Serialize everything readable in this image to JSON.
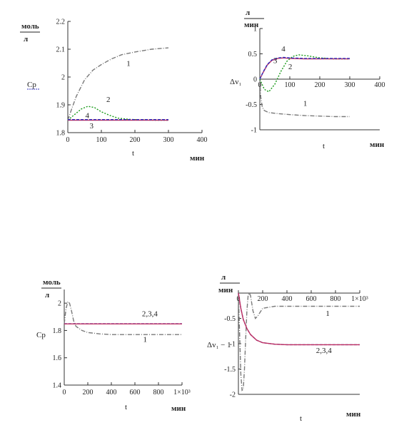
{
  "chart_data": [
    {
      "type": "line",
      "ylabel_unit_top": "моль",
      "ylabel_unit_bottom": "л",
      "ylabel": "Cp",
      "xlabel": "t",
      "xunit": "мин",
      "xlim": [
        0,
        400
      ],
      "ylim": [
        1.8,
        2.2
      ],
      "xticks": [
        0,
        100,
        200,
        300,
        400
      ],
      "xtick_labels": [
        "0",
        "100",
        "200",
        "300",
        "400"
      ],
      "yticks": [
        1.8,
        1.9,
        2.0,
        2.1,
        2.2
      ],
      "ytick_labels": [
        "1.8",
        "1.9",
        "2",
        "2.1",
        "2.2"
      ],
      "series": [
        {
          "name": "1",
          "color": "#7a7a7a",
          "dash": "6 2 1 2",
          "x": [
            0,
            10,
            25,
            50,
            75,
            100,
            130,
            160,
            200,
            250,
            300
          ],
          "y": [
            1.845,
            1.88,
            1.93,
            1.99,
            2.025,
            2.045,
            2.065,
            2.08,
            2.09,
            2.1,
            2.105
          ]
        },
        {
          "name": "2",
          "color": "#1a9a1a",
          "dash": "2 2",
          "x": [
            0,
            20,
            40,
            60,
            80,
            100,
            125,
            150,
            180,
            220,
            260,
            300
          ],
          "y": [
            1.845,
            1.865,
            1.885,
            1.895,
            1.89,
            1.875,
            1.862,
            1.852,
            1.848,
            1.846,
            1.845,
            1.845
          ]
        },
        {
          "name": "3",
          "color": "#c03060",
          "dash": "",
          "x": [
            0,
            50,
            100,
            150,
            200,
            250,
            300
          ],
          "y": [
            1.845,
            1.845,
            1.845,
            1.845,
            1.845,
            1.845,
            1.845
          ]
        },
        {
          "name": "4",
          "color": "#3030c0",
          "dash": "4 2",
          "x": [
            0,
            50,
            100,
            150,
            200,
            250,
            300
          ],
          "y": [
            1.847,
            1.847,
            1.847,
            1.847,
            1.847,
            1.847,
            1.847
          ]
        }
      ],
      "annotations": [
        {
          "text": "1",
          "x": 175,
          "y": 2.04
        },
        {
          "text": "2",
          "x": 115,
          "y": 1.91
        },
        {
          "text": "4",
          "x": 52,
          "y": 1.853
        },
        {
          "text": "3",
          "x": 65,
          "y": 1.815
        }
      ]
    },
    {
      "type": "line",
      "ylabel_unit_top": "л",
      "ylabel_unit_bottom": "мин",
      "ylabel": "Δv₁",
      "xlabel": "t",
      "xunit": "мин",
      "xlim": [
        0,
        400
      ],
      "ylim": [
        -1,
        1
      ],
      "xticks": [
        0,
        100,
        200,
        300,
        400
      ],
      "xtick_labels": [
        "0",
        "100",
        "200",
        "300",
        "400"
      ],
      "yticks": [
        -1,
        -0.5,
        0,
        0.5,
        1
      ],
      "ytick_labels": [
        "-1",
        "-0.5",
        "0",
        "0.5",
        "1"
      ],
      "series": [
        {
          "name": "1",
          "color": "#7a7a7a",
          "dash": "6 2 1 2",
          "x": [
            0,
            3,
            8,
            15,
            30,
            60,
            100,
            150,
            200,
            250,
            300
          ],
          "y": [
            0,
            -0.35,
            -0.55,
            -0.62,
            -0.66,
            -0.68,
            -0.7,
            -0.72,
            -0.73,
            -0.74,
            -0.74
          ]
        },
        {
          "name": "2",
          "color": "#1a9a1a",
          "dash": "2 2",
          "x": [
            0,
            15,
            30,
            50,
            70,
            90,
            110,
            130,
            160,
            200,
            250,
            300
          ],
          "y": [
            0,
            -0.2,
            -0.25,
            -0.1,
            0.15,
            0.35,
            0.45,
            0.48,
            0.46,
            0.42,
            0.4,
            0.4
          ]
        },
        {
          "name": "3",
          "color": "#c03060",
          "dash": "",
          "x": [
            0,
            10,
            25,
            40,
            60,
            80,
            100,
            150,
            200,
            250,
            300
          ],
          "y": [
            0,
            0.12,
            0.28,
            0.37,
            0.41,
            0.42,
            0.41,
            0.4,
            0.4,
            0.4,
            0.4
          ]
        },
        {
          "name": "4",
          "color": "#3030c0",
          "dash": "4 2",
          "x": [
            0,
            10,
            25,
            40,
            60,
            80,
            100,
            150,
            200,
            250,
            300
          ],
          "y": [
            0,
            0.13,
            0.29,
            0.38,
            0.42,
            0.43,
            0.42,
            0.41,
            0.41,
            0.41,
            0.41
          ]
        }
      ],
      "annotations": [
        {
          "text": "4",
          "x": 72,
          "y": 0.55
        },
        {
          "text": "3",
          "x": 45,
          "y": 0.32
        },
        {
          "text": "2",
          "x": 95,
          "y": 0.2
        },
        {
          "text": "1",
          "x": 145,
          "y": -0.53
        }
      ]
    },
    {
      "type": "line",
      "ylabel_unit_top": "моль",
      "ylabel_unit_bottom": "л",
      "ylabel": "Cp",
      "xlabel": "t",
      "xunit": "мин",
      "xlim": [
        0,
        1000
      ],
      "ylim": [
        1.4,
        2.1
      ],
      "xticks": [
        0,
        200,
        400,
        600,
        800,
        1000
      ],
      "xtick_labels": [
        "0",
        "200",
        "400",
        "600",
        "800",
        "1×10³"
      ],
      "yticks": [
        1.4,
        1.6,
        1.8,
        2.0
      ],
      "ytick_labels": [
        "1.4",
        "1.6",
        "1.8",
        "2"
      ],
      "series": [
        {
          "name": "1",
          "color": "#7a7a7a",
          "dash": "6 2 1 2",
          "x": [
            0,
            15,
            30,
            45,
            60,
            80,
            100,
            150,
            200,
            300,
            400,
            600,
            800,
            1000
          ],
          "y": [
            1.85,
            1.96,
            2.01,
            2.0,
            1.95,
            1.87,
            1.83,
            1.8,
            1.785,
            1.775,
            1.77,
            1.77,
            1.77,
            1.77
          ]
        },
        {
          "name": "2,3,4",
          "color": "#3030c0",
          "dash": "4 2",
          "x": [
            0,
            200,
            400,
            600,
            800,
            1000
          ],
          "y": [
            1.85,
            1.85,
            1.85,
            1.85,
            1.85,
            1.85
          ]
        },
        {
          "name": "2,3,4 (solid)",
          "color": "#c03060",
          "dash": "",
          "x": [
            0,
            200,
            400,
            600,
            800,
            1000
          ],
          "y": [
            1.848,
            1.848,
            1.848,
            1.848,
            1.848,
            1.848
          ]
        }
      ],
      "annotations": [
        {
          "text": "2,3,4",
          "x": 660,
          "y": 1.905
        },
        {
          "text": "1",
          "x": 670,
          "y": 1.715
        }
      ]
    },
    {
      "type": "line",
      "ylabel_unit_top": "л",
      "ylabel_unit_bottom": "мин",
      "ylabel": "Δv₁ − 1",
      "xlabel": "t",
      "xunit": "мин",
      "xlim": [
        0,
        1000
      ],
      "ylim": [
        -2,
        0
      ],
      "xticks": [
        0,
        200,
        400,
        600,
        800,
        1000
      ],
      "xtick_labels": [
        "0",
        "200",
        "400",
        "600",
        "800",
        "1×10³"
      ],
      "yticks": [
        -2,
        -1.5,
        -1,
        -0.5
      ],
      "ytick_labels": [
        "-2",
        "-1.5",
        "-1",
        "-0.5"
      ],
      "series": [
        {
          "name": "1",
          "color": "#7a7a7a",
          "dash": "6 2 1 2",
          "x": [
            0,
            10,
            20,
            30,
            40,
            50,
            60,
            70,
            80,
            90,
            100,
            120,
            140,
            160,
            200,
            300,
            500,
            700,
            1000
          ],
          "y": [
            0,
            -0.8,
            -1.6,
            -1.92,
            -1.9,
            -1.5,
            -0.9,
            -0.35,
            -0.05,
            0,
            -0.05,
            -0.35,
            -0.5,
            -0.45,
            -0.3,
            -0.26,
            -0.26,
            -0.26,
            -0.26
          ]
        },
        {
          "name": "2,3,4",
          "color": "#3030c0",
          "dash": "4 2",
          "x": [
            0,
            20,
            40,
            70,
            100,
            150,
            200,
            300,
            400,
            600,
            800,
            1000
          ],
          "y": [
            0,
            -0.3,
            -0.52,
            -0.7,
            -0.82,
            -0.93,
            -0.98,
            -1.01,
            -1.02,
            -1.02,
            -1.02,
            -1.02
          ]
        },
        {
          "name": "2,3,4 (solid)",
          "color": "#c03060",
          "dash": "",
          "x": [
            0,
            20,
            40,
            70,
            100,
            150,
            200,
            300,
            400,
            600,
            800,
            1000
          ],
          "y": [
            0,
            -0.3,
            -0.52,
            -0.7,
            -0.82,
            -0.93,
            -0.98,
            -1.01,
            -1.02,
            -1.02,
            -1.02,
            -1.02
          ]
        }
      ],
      "annotations": [
        {
          "text": "1",
          "x": 720,
          "y": -0.45
        },
        {
          "text": "2,3,4",
          "x": 640,
          "y": -1.18
        }
      ]
    }
  ]
}
